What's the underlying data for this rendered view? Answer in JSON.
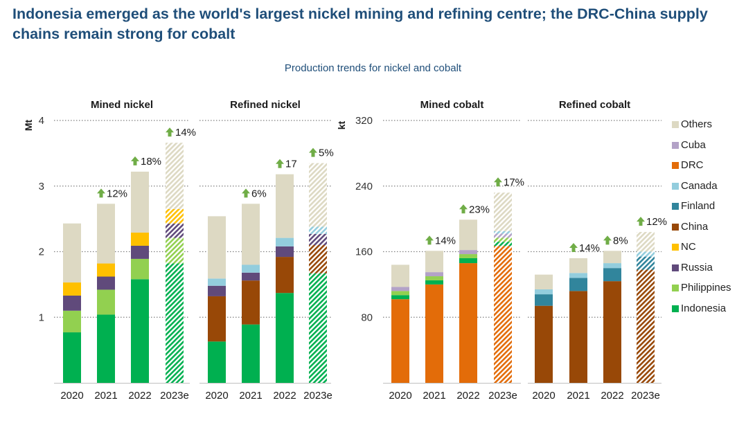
{
  "page": {
    "headline": "Indonesia emerged as the world's largest nickel mining and refining centre; the DRC-China supply chains remain strong for cobalt",
    "subtitle": "Production trends for nickel and cobalt"
  },
  "colors": {
    "Others": "#ddd9c3",
    "Cuba": "#b3a2c7",
    "DRC": "#e36c09",
    "Canada": "#93cddd",
    "Finland": "#31859c",
    "China": "#984807",
    "NC": "#ffc000",
    "Russia": "#604a7b",
    "Philippines": "#92d050",
    "Indonesia": "#00b050",
    "arrow": "#70ad47",
    "grid": "#7f7f7f"
  },
  "legend": [
    "Others",
    "Cuba",
    "DRC",
    "Canada",
    "Finland",
    "China",
    "NC",
    "Russia",
    "Philippines",
    "Indonesia"
  ],
  "chart_data": [
    {
      "type": "bar",
      "stacked": true,
      "title": "Mined nickel",
      "ylabel": "Mt",
      "ylim": [
        0,
        4
      ],
      "yticks": [
        "1",
        "2",
        "3",
        "4"
      ],
      "categories": [
        "2020",
        "2021",
        "2022",
        "2023e"
      ],
      "estimate_category": "2023e",
      "series": [
        {
          "name": "Indonesia",
          "values": [
            0.77,
            1.04,
            1.58,
            1.82
          ]
        },
        {
          "name": "Philippines",
          "values": [
            0.33,
            0.38,
            0.31,
            0.39
          ]
        },
        {
          "name": "Russia",
          "values": [
            0.23,
            0.2,
            0.2,
            0.22
          ]
        },
        {
          "name": "NC",
          "values": [
            0.2,
            0.2,
            0.2,
            0.22
          ]
        },
        {
          "name": "Others",
          "values": [
            0.9,
            0.91,
            0.93,
            1.01
          ]
        }
      ],
      "growth_labels": [
        "",
        "12%",
        "18%",
        "14%"
      ]
    },
    {
      "type": "bar",
      "stacked": true,
      "title": "Refined nickel",
      "ylim": [
        0,
        4
      ],
      "categories": [
        "2020",
        "2021",
        "2022",
        "2023e"
      ],
      "estimate_category": "2023e",
      "series": [
        {
          "name": "Indonesia",
          "values": [
            0.63,
            0.89,
            1.37,
            1.67
          ]
        },
        {
          "name": "China",
          "values": [
            0.69,
            0.67,
            0.55,
            0.43
          ]
        },
        {
          "name": "Russia",
          "values": [
            0.16,
            0.12,
            0.16,
            0.17
          ]
        },
        {
          "name": "Canada",
          "values": [
            0.11,
            0.12,
            0.13,
            0.11
          ]
        },
        {
          "name": "Others",
          "values": [
            0.95,
            0.93,
            0.97,
            0.97
          ]
        }
      ],
      "growth_labels": [
        "",
        "6%",
        "17",
        "5%"
      ]
    },
    {
      "type": "bar",
      "stacked": true,
      "title": "Mined cobalt",
      "ylabel": "kt",
      "ylim": [
        0,
        320
      ],
      "yticks": [
        "80",
        "160",
        "240",
        "320"
      ],
      "categories": [
        "2020",
        "2021",
        "2022",
        "2023e"
      ],
      "estimate_category": "2023e",
      "series": [
        {
          "name": "DRC",
          "values": [
            102,
            120,
            146,
            167
          ]
        },
        {
          "name": "Indonesia",
          "values": [
            5,
            5,
            6,
            5
          ]
        },
        {
          "name": "Philippines",
          "values": [
            5,
            5,
            5,
            5
          ]
        },
        {
          "name": "Cuba",
          "values": [
            5,
            5,
            5,
            5
          ]
        },
        {
          "name": "Canada",
          "values": [
            0,
            0,
            0,
            3
          ]
        },
        {
          "name": "Others",
          "values": [
            27,
            26,
            37,
            47
          ]
        }
      ],
      "growth_labels": [
        "",
        "14%",
        "23%",
        "17%"
      ]
    },
    {
      "type": "bar",
      "stacked": true,
      "title": "Refined cobalt",
      "ylim": [
        0,
        320
      ],
      "categories": [
        "2020",
        "2021",
        "2022",
        "2023e"
      ],
      "estimate_category": "2023e",
      "series": [
        {
          "name": "China",
          "values": [
            94,
            112,
            124,
            138
          ]
        },
        {
          "name": "Finland",
          "values": [
            14,
            16,
            16,
            16
          ]
        },
        {
          "name": "Canada",
          "values": [
            6,
            6,
            6,
            6
          ]
        },
        {
          "name": "Others",
          "values": [
            18,
            18,
            15,
            24
          ]
        }
      ],
      "growth_labels": [
        "",
        "14%",
        "8%",
        "12%"
      ]
    }
  ]
}
